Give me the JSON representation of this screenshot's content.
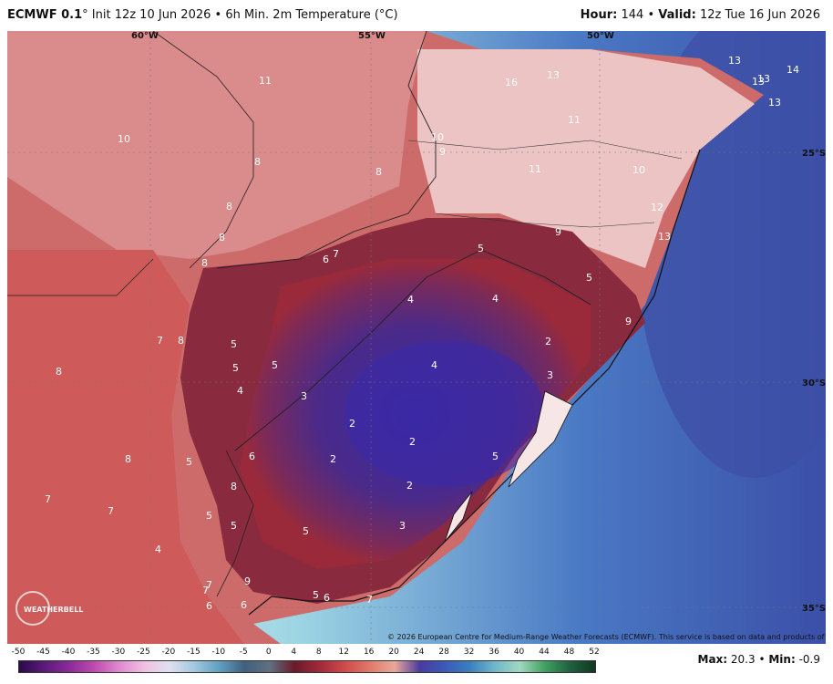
{
  "header": {
    "model": "ECMWF 0.1",
    "deg": "°",
    "init": " Init 12z 10 Jun 2026",
    "product": " • 6h Min. 2m Temperature (°C)",
    "hour_label": "Hour:",
    "hour_value": "144",
    "valid_label": "Valid:",
    "valid_value": "12z Tue 16 Jun 2026"
  },
  "map": {
    "longitude_labels": [
      "60°W",
      "55°W",
      "50°W"
    ],
    "latitude_labels": [
      "25°S",
      "30°S",
      "35°S"
    ],
    "copyright": "© 2026 European Centre for Medium-Range Weather Forecasts (ECMWF). This service is based on data and products of the ECMWF.",
    "logo_text": "WEATHERBELL",
    "value_labels": [
      "11",
      "10",
      "8",
      "8",
      "8",
      "8",
      "7",
      "6",
      "8",
      "10",
      "9",
      "11",
      "10",
      "16",
      "13",
      "11",
      "13",
      "14",
      "13",
      "13",
      "13",
      "12",
      "13",
      "5",
      "9",
      "5",
      "9",
      "4",
      "4",
      "4",
      "5",
      "5",
      "7",
      "8",
      "5",
      "4",
      "2",
      "3",
      "3",
      "2",
      "2",
      "2",
      "2",
      "5",
      "6",
      "8",
      "5",
      "8",
      "7",
      "5",
      "5",
      "5",
      "3",
      "4",
      "7",
      "7",
      "6",
      "7",
      "6",
      "9",
      "5",
      "6",
      "7",
      "8"
    ]
  },
  "colorbar": {
    "ticks": [
      "-50",
      "-45",
      "-40",
      "-35",
      "-30",
      "-25",
      "-20",
      "-15",
      "-10",
      "-5",
      "0",
      "4",
      "8",
      "12",
      "16",
      "20",
      "24",
      "28",
      "32",
      "36",
      "40",
      "44",
      "48",
      "52"
    ],
    "colors": {
      "cold": "#2a1a5e",
      "mid": "#7a2a2a",
      "land_warm": "#c94a4a",
      "ocean": "#3a5fb0",
      "ocean_light": "#a8d8e8"
    }
  },
  "stats": {
    "max_label": "Max:",
    "max_value": "20.3",
    "min_label": "Min:",
    "min_value": "-0.9"
  }
}
